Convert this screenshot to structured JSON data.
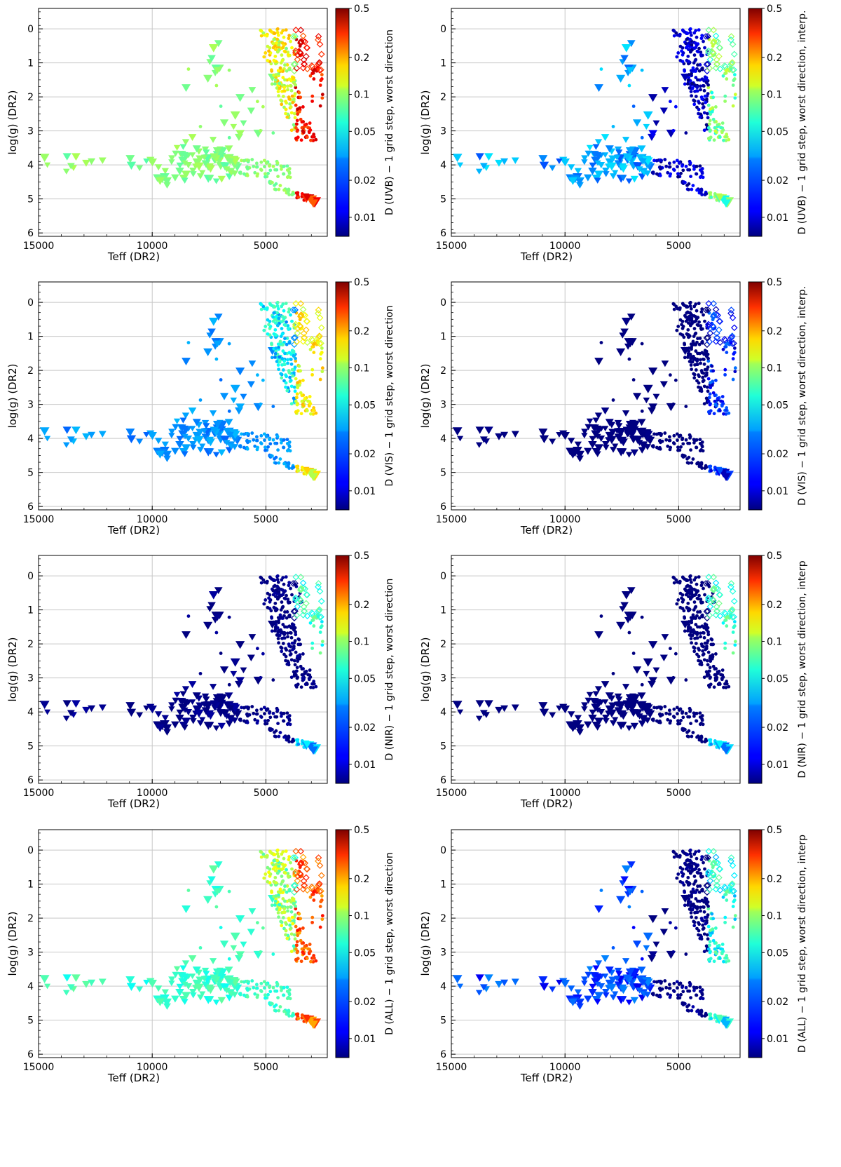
{
  "figure": {
    "xlabel": "Teff  (DR2)",
    "ylabel": "log(g)  (DR2)",
    "x_ticks": [
      {
        "value": 15000,
        "label": "15000"
      },
      {
        "value": 10000,
        "label": "10000"
      },
      {
        "value": 5000,
        "label": "5000"
      }
    ],
    "y_ticks": [
      {
        "value": 0,
        "label": "0"
      },
      {
        "value": 1,
        "label": "1"
      },
      {
        "value": 2,
        "label": "2"
      },
      {
        "value": 3,
        "label": "3"
      },
      {
        "value": 4,
        "label": "4"
      },
      {
        "value": 5,
        "label": "5"
      },
      {
        "value": 6,
        "label": "6"
      }
    ],
    "colorbar_ticks": [
      {
        "value": 0.5,
        "label": "0.5"
      },
      {
        "value": 0.2,
        "label": "0.2"
      },
      {
        "value": 0.1,
        "label": "0.1"
      },
      {
        "value": 0.05,
        "label": "0.05"
      },
      {
        "value": 0.02,
        "label": "0.02"
      },
      {
        "value": 0.01,
        "label": "0.01"
      }
    ],
    "colors": {
      "grid": "#c8c8c8",
      "axes": "#000000",
      "edge_dark": "#00003a"
    }
  },
  "chart_data": [
    {
      "type": "scatter",
      "id": "uvb",
      "xlabel": "Teff  (DR2)",
      "ylabel": "log(g)  (DR2)",
      "xlim": [
        15000,
        2300
      ],
      "ylim": [
        6.1,
        -0.6
      ],
      "colorbar_label": "D (UVB) − 1 grid step, worst direction",
      "clim": [
        0.007,
        0.5
      ],
      "colorbar_scale": "log",
      "mode": "direct",
      "level": 0.055
    },
    {
      "type": "scatter",
      "id": "uvb-interp",
      "xlabel": "Teff  (DR2)",
      "ylabel": "log(g)  (DR2)",
      "xlim": [
        15000,
        2300
      ],
      "ylim": [
        6.1,
        -0.6
      ],
      "colorbar_label": "D (UVB) − 1 grid step, worst direction, interp.",
      "clim": [
        0.007,
        0.5
      ],
      "colorbar_scale": "log",
      "mode": "interp",
      "level": 0.03
    },
    {
      "type": "scatter",
      "id": "vis",
      "xlabel": "Teff  (DR2)",
      "ylabel": "log(g)  (DR2)",
      "xlim": [
        15000,
        2300
      ],
      "ylim": [
        6.1,
        -0.6
      ],
      "colorbar_label": "D (VIS) − 1 grid step, worst direction",
      "clim": [
        0.007,
        0.5
      ],
      "colorbar_scale": "log",
      "mode": "direct",
      "level": 0.02
    },
    {
      "type": "scatter",
      "id": "vis-interp",
      "xlabel": "Teff  (DR2)",
      "ylabel": "log(g)  (DR2)",
      "xlim": [
        15000,
        2300
      ],
      "ylim": [
        6.1,
        -0.6
      ],
      "colorbar_label": "D (VIS) − 1 grid step, worst direction, interp.",
      "clim": [
        0.007,
        0.5
      ],
      "colorbar_scale": "log",
      "mode": "interp",
      "level": 0.007
    },
    {
      "type": "scatter",
      "id": "nir",
      "xlabel": "Teff  (DR2)",
      "ylabel": "log(g)  (DR2)",
      "xlim": [
        15000,
        2300
      ],
      "ylim": [
        6.1,
        -0.6
      ],
      "colorbar_label": "D (NIR) − 1 grid step, worst direction",
      "clim": [
        0.007,
        0.5
      ],
      "colorbar_scale": "log",
      "mode": "nir",
      "level": 0.007
    },
    {
      "type": "scatter",
      "id": "nir-interp",
      "xlabel": "Teff  (DR2)",
      "ylabel": "log(g)  (DR2)",
      "xlim": [
        15000,
        2300
      ],
      "ylim": [
        6.1,
        -0.6
      ],
      "colorbar_label": "D (NIR) − 1 grid step, worst direction, interp",
      "clim": [
        0.007,
        0.5
      ],
      "colorbar_scale": "log",
      "mode": "nir",
      "level": 0.006
    },
    {
      "type": "scatter",
      "id": "all",
      "xlabel": "Teff  (DR2)",
      "ylabel": "log(g)  (DR2)",
      "xlim": [
        15000,
        2300
      ],
      "ylim": [
        6.1,
        -0.6
      ],
      "colorbar_label": "D (ALL) − 1 grid step, worst direction",
      "clim": [
        0.007,
        0.5
      ],
      "colorbar_scale": "log",
      "mode": "direct",
      "level": 0.04
    },
    {
      "type": "scatter",
      "id": "all-interp",
      "xlabel": "Teff  (DR2)",
      "ylabel": "log(g)  (DR2)",
      "xlim": [
        15000,
        2300
      ],
      "ylim": [
        6.1,
        -0.6
      ],
      "colorbar_label": "D (ALL) − 1 grid step, worst direction, interp",
      "clim": [
        0.007,
        0.5
      ],
      "colorbar_scale": "log",
      "mode": "interp",
      "level": 0.02
    }
  ]
}
